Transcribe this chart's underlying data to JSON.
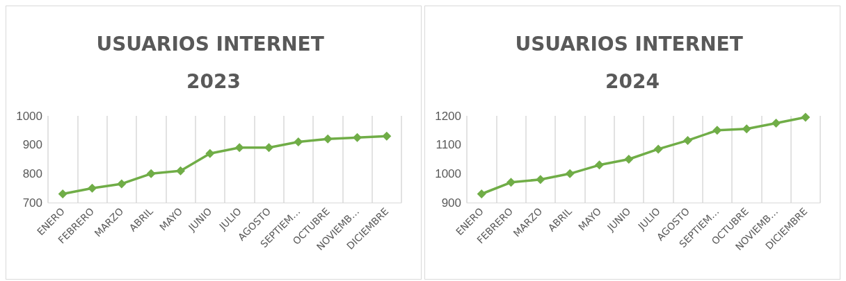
{
  "chart_data": [
    {
      "type": "line",
      "title": "USUARIOS INTERNET 2023",
      "categories": [
        "ENERO",
        "FEBRERO",
        "MARZO",
        "ABRIL",
        "MAYO",
        "JUNIO",
        "JULIO",
        "AGOSTO",
        "SEPTIEM…",
        "OCTUBRE",
        "NOVIEMB…",
        "DICIEMBRE"
      ],
      "series": [
        {
          "color": "#70ad47",
          "values": [
            730,
            750,
            765,
            800,
            810,
            870,
            890,
            890,
            910,
            920,
            925,
            930
          ]
        }
      ],
      "ylim": [
        700,
        1000
      ],
      "yticks": [
        700,
        800,
        900,
        1000
      ],
      "grid": "x",
      "marker": "diamond",
      "line_style": "solid"
    },
    {
      "type": "line",
      "title": "USUARIOS INTERNET 2024",
      "categories": [
        "ENERO",
        "FEBRERO",
        "MARZO",
        "ABRIL",
        "MAYO",
        "JUNIO",
        "JULIO",
        "AGOSTO",
        "SEPTIEM…",
        "OCTUBRE",
        "NOVIEMB…",
        "DICIEMBRE"
      ],
      "series": [
        {
          "color": "#70ad47",
          "values": [
            930,
            970,
            980,
            1000,
            1030,
            1050,
            1085,
            1115,
            1150,
            1155,
            1175,
            1195
          ]
        }
      ],
      "ylim": [
        900,
        1200
      ],
      "yticks": [
        900,
        1000,
        1100,
        1200
      ],
      "grid": "x",
      "marker": "diamond",
      "line_style": "solid"
    }
  ]
}
